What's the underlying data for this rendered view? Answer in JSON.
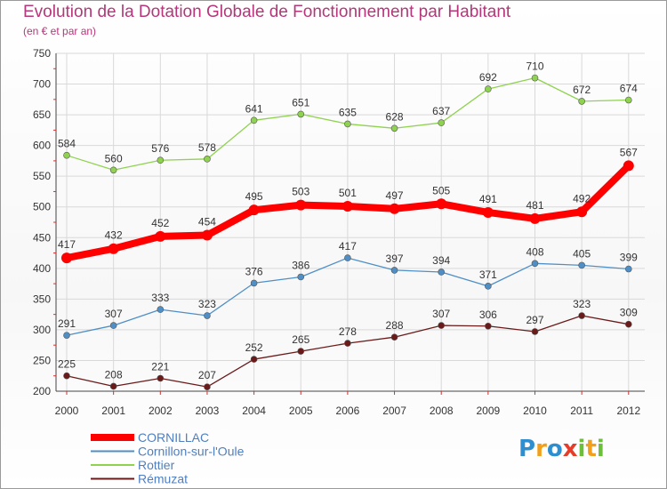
{
  "chart_data": {
    "type": "line",
    "title": "Evolution de la Dotation Globale de Fonctionnement par Habitant",
    "subtitle": "(en € et par an)",
    "x": [
      "2000",
      "2001",
      "2002",
      "2003",
      "2004",
      "2005",
      "2006",
      "2007",
      "2008",
      "2009",
      "2010",
      "2011",
      "2012"
    ],
    "ylim": [
      200,
      750
    ],
    "yticks": [
      200,
      250,
      300,
      350,
      400,
      450,
      500,
      550,
      600,
      650,
      700,
      750
    ],
    "grid": true,
    "legend_position": "bottom-left",
    "series": [
      {
        "name": "CORNILLAC",
        "color": "#ff0000",
        "values": [
          417,
          432,
          452,
          454,
          495,
          503,
          501,
          497,
          505,
          491,
          481,
          492,
          567
        ]
      },
      {
        "name": "Cornillon-sur-l'Oule",
        "color": "#4f8fc6",
        "values": [
          291,
          307,
          333,
          323,
          376,
          386,
          417,
          397,
          394,
          371,
          408,
          405,
          399
        ]
      },
      {
        "name": "Rottier",
        "color": "#8fd24f",
        "values": [
          584,
          560,
          576,
          578,
          641,
          651,
          635,
          628,
          637,
          692,
          710,
          672,
          674
        ]
      },
      {
        "name": "Rémuzat",
        "color": "#6b1a1a",
        "values": [
          225,
          208,
          221,
          207,
          252,
          265,
          278,
          288,
          307,
          306,
          297,
          323,
          309
        ]
      }
    ]
  },
  "logo": {
    "text": "Proxiti",
    "letters": [
      "P",
      "r",
      "o",
      "x",
      "i",
      "t",
      "i"
    ],
    "colors": [
      "#2e8fd0",
      "#f2a01c",
      "#2e8fd0",
      "#e63c2a",
      "#6cbf3a",
      "#f2a01c",
      "#6cbf3a"
    ]
  }
}
